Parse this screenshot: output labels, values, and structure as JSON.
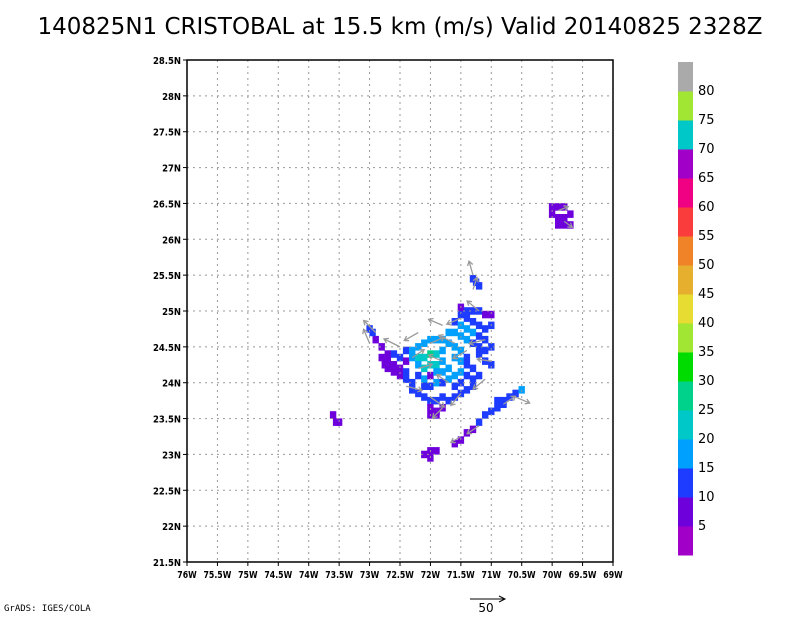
{
  "title": "140825N1 CRISTOBAL at 15.5 km (m/s) Valid 20140825 2328Z",
  "footer": "GrADS: IGES/COLA",
  "reference_vector_label": "50",
  "chart_data": {
    "type": "heatmap",
    "title": "140825N1 CRISTOBAL at 15.5 km (m/s) Valid 20140825 2328Z",
    "variable": "wind speed (m/s)",
    "xlim": [
      -76,
      -69
    ],
    "ylim": [
      21.5,
      28.5
    ],
    "x_ticks": [
      -76,
      -75.5,
      -75,
      -74.5,
      -74,
      -73.5,
      -73,
      -72.5,
      -72,
      -71.5,
      -71,
      -70.5,
      -70,
      -69.5,
      -69
    ],
    "x_tick_labels": [
      "76W",
      "75.5W",
      "75W",
      "74.5W",
      "74W",
      "73.5W",
      "73W",
      "72.5W",
      "72W",
      "71.5W",
      "71W",
      "70.5W",
      "70W",
      "69.5W",
      "69W"
    ],
    "y_ticks": [
      21.5,
      22,
      22.5,
      23,
      23.5,
      24,
      24.5,
      25,
      25.5,
      26,
      26.5,
      27,
      27.5,
      28,
      28.5
    ],
    "y_tick_labels": [
      "21.5N",
      "22N",
      "22.5N",
      "23N",
      "23.5N",
      "24N",
      "24.5N",
      "25N",
      "25.5N",
      "26N",
      "26.5N",
      "27N",
      "27.5N",
      "28N",
      "28.5N"
    ],
    "grid": true,
    "colorbar": {
      "labels": [
        "5",
        "10",
        "15",
        "20",
        "25",
        "30",
        "35",
        "40",
        "45",
        "50",
        "55",
        "60",
        "65",
        "70",
        "75",
        "80"
      ],
      "bounds": [
        0,
        5,
        10,
        15,
        20,
        25,
        30,
        35,
        40,
        45,
        50,
        55,
        60,
        65,
        70,
        75,
        80,
        85
      ],
      "colors": [
        "#a000c8",
        "#6e00dc",
        "#1e3cff",
        "#00a0ff",
        "#00c8c8",
        "#00d28c",
        "#00dc00",
        "#a0e632",
        "#e6dc32",
        "#e6af2d",
        "#f08228",
        "#fa3c3c",
        "#f00082",
        "#a000c8",
        "#00c8c8",
        "#a0e632",
        "#aaaaaa"
      ]
    },
    "cells": [
      [
        -72.9,
        24.6,
        7
      ],
      [
        -72.8,
        24.5,
        7
      ],
      [
        -72.7,
        24.4,
        8
      ],
      [
        -72.6,
        24.4,
        10
      ],
      [
        -72.5,
        24.35,
        10
      ],
      [
        -72.4,
        24.3,
        8
      ],
      [
        -72.7,
        24.3,
        6
      ],
      [
        -72.6,
        24.25,
        5
      ],
      [
        -72.5,
        24.2,
        7
      ],
      [
        -72.6,
        24.15,
        6
      ],
      [
        -72.5,
        24.1,
        8
      ],
      [
        -72.4,
        24.15,
        10
      ],
      [
        -72.4,
        24.05,
        10
      ],
      [
        -72.3,
        24.0,
        11
      ],
      [
        -72.3,
        23.9,
        10
      ],
      [
        -72.2,
        23.85,
        11
      ],
      [
        -72.1,
        23.8,
        12
      ],
      [
        -72.0,
        23.75,
        12
      ],
      [
        -71.9,
        23.75,
        11
      ],
      [
        -71.8,
        23.8,
        11
      ],
      [
        -71.7,
        23.75,
        10
      ],
      [
        -71.6,
        23.8,
        11
      ],
      [
        -71.5,
        23.85,
        10
      ],
      [
        -71.4,
        23.9,
        11
      ],
      [
        -72.0,
        23.65,
        6
      ],
      [
        -71.9,
        23.6,
        6
      ],
      [
        -72.0,
        23.55,
        7
      ],
      [
        -71.9,
        23.55,
        6
      ],
      [
        -71.8,
        23.65,
        8
      ],
      [
        -72.4,
        24.45,
        14
      ],
      [
        -72.3,
        24.45,
        17
      ],
      [
        -72.2,
        24.5,
        18
      ],
      [
        -72.1,
        24.55,
        19
      ],
      [
        -72.0,
        24.6,
        19
      ],
      [
        -71.9,
        24.6,
        18
      ],
      [
        -72.3,
        24.35,
        17
      ],
      [
        -72.2,
        24.35,
        21
      ],
      [
        -72.1,
        24.35,
        24
      ],
      [
        -72.0,
        24.4,
        26
      ],
      [
        -71.9,
        24.4,
        24
      ],
      [
        -71.8,
        24.45,
        19
      ],
      [
        -72.2,
        24.25,
        18
      ],
      [
        -72.1,
        24.2,
        23
      ],
      [
        -72.0,
        24.25,
        24
      ],
      [
        -71.9,
        24.25,
        20
      ],
      [
        -71.8,
        24.3,
        18
      ],
      [
        -72.2,
        24.1,
        14
      ],
      [
        -72.1,
        24.05,
        17
      ],
      [
        -72.0,
        24.1,
        9
      ],
      [
        -71.9,
        24.15,
        16
      ],
      [
        -71.8,
        24.15,
        17
      ],
      [
        -71.7,
        24.2,
        16
      ],
      [
        -72.1,
        23.95,
        12
      ],
      [
        -72.0,
        23.95,
        13
      ],
      [
        -71.9,
        24.0,
        15
      ],
      [
        -71.8,
        24.0,
        14
      ],
      [
        -71.7,
        24.05,
        16
      ],
      [
        -71.6,
        24.1,
        15
      ],
      [
        -71.8,
        24.6,
        17
      ],
      [
        -71.7,
        24.55,
        17
      ],
      [
        -71.6,
        24.5,
        16
      ],
      [
        -71.5,
        24.45,
        15
      ],
      [
        -71.6,
        24.35,
        16
      ],
      [
        -71.5,
        24.3,
        15
      ],
      [
        -71.4,
        24.35,
        13
      ],
      [
        -71.4,
        24.25,
        12
      ],
      [
        -71.3,
        24.2,
        12
      ],
      [
        -71.5,
        24.15,
        15
      ],
      [
        -71.4,
        24.1,
        13
      ],
      [
        -71.3,
        24.05,
        12
      ],
      [
        -71.2,
        24.1,
        11
      ],
      [
        -71.6,
        23.95,
        13
      ],
      [
        -71.5,
        24.0,
        13
      ],
      [
        -71.3,
        23.95,
        11
      ],
      [
        -71.7,
        24.7,
        16
      ],
      [
        -71.6,
        24.7,
        15
      ],
      [
        -71.5,
        24.65,
        15
      ],
      [
        -71.4,
        24.6,
        15
      ],
      [
        -71.3,
        24.55,
        14
      ],
      [
        -71.2,
        24.5,
        12
      ],
      [
        -71.6,
        24.85,
        13
      ],
      [
        -71.5,
        24.8,
        15
      ],
      [
        -71.4,
        24.75,
        15
      ],
      [
        -71.3,
        24.7,
        15
      ],
      [
        -71.2,
        24.65,
        13
      ],
      [
        -71.1,
        24.6,
        11
      ],
      [
        -71.5,
        24.95,
        11
      ],
      [
        -71.4,
        24.9,
        13
      ],
      [
        -71.3,
        24.85,
        14
      ],
      [
        -71.2,
        24.8,
        13
      ],
      [
        -71.1,
        24.75,
        11
      ],
      [
        -71.0,
        24.8,
        10
      ],
      [
        -71.5,
        25.05,
        9
      ],
      [
        -71.4,
        25.0,
        10
      ],
      [
        -71.3,
        25.0,
        11
      ],
      [
        -71.2,
        25.0,
        10
      ],
      [
        -71.1,
        24.95,
        9
      ],
      [
        -71.0,
        24.95,
        7
      ],
      [
        -71.2,
        24.4,
        11
      ],
      [
        -71.1,
        24.45,
        11
      ],
      [
        -71.0,
        24.5,
        10
      ],
      [
        -71.1,
        24.3,
        10
      ],
      [
        -71.0,
        24.25,
        10
      ],
      [
        -71.3,
        25.45,
        10
      ],
      [
        -71.25,
        25.4,
        10
      ],
      [
        -71.2,
        25.35,
        10
      ],
      [
        -72.8,
        24.35,
        6
      ],
      [
        -72.75,
        24.25,
        7
      ],
      [
        -72.7,
        24.2,
        6
      ],
      [
        -73.0,
        24.75,
        12
      ],
      [
        -72.95,
        24.7,
        13
      ],
      [
        -70.9,
        23.75,
        11
      ],
      [
        -70.8,
        23.75,
        11
      ],
      [
        -70.7,
        23.8,
        11
      ],
      [
        -70.6,
        23.85,
        12
      ],
      [
        -70.5,
        23.9,
        15
      ],
      [
        -70.9,
        23.65,
        10
      ],
      [
        -70.8,
        23.7,
        11
      ],
      [
        -71.0,
        23.6,
        10
      ],
      [
        -71.1,
        23.55,
        11
      ],
      [
        -71.2,
        23.45,
        12
      ],
      [
        -71.3,
        23.35,
        8
      ],
      [
        -71.4,
        23.3,
        7
      ],
      [
        -71.5,
        23.2,
        6
      ],
      [
        -71.6,
        23.15,
        7
      ],
      [
        -72.0,
        23.05,
        6
      ],
      [
        -71.9,
        23.05,
        6
      ],
      [
        -72.0,
        22.95,
        7
      ],
      [
        -72.1,
        23.0,
        6
      ],
      [
        -73.6,
        23.55,
        6
      ],
      [
        -73.55,
        23.45,
        7
      ],
      [
        -73.5,
        23.45,
        6
      ],
      [
        -70.0,
        26.45,
        6
      ],
      [
        -69.9,
        26.45,
        7
      ],
      [
        -69.8,
        26.45,
        6
      ],
      [
        -70.0,
        26.35,
        6
      ],
      [
        -69.9,
        26.3,
        6
      ],
      [
        -69.8,
        26.3,
        5
      ],
      [
        -69.9,
        26.2,
        6
      ],
      [
        -69.8,
        26.2,
        7
      ],
      [
        -69.7,
        26.2,
        6
      ],
      [
        -69.7,
        26.35,
        6
      ]
    ],
    "vectors": [
      [
        -72.9,
        24.7,
        -12,
        12
      ],
      [
        -72.5,
        24.5,
        -16,
        8
      ],
      [
        -72.2,
        24.7,
        -14,
        -8
      ],
      [
        -71.8,
        24.8,
        -14,
        6
      ],
      [
        -71.5,
        24.9,
        -14,
        -6
      ],
      [
        -71.2,
        25.0,
        -12,
        10
      ],
      [
        -71.1,
        24.6,
        -16,
        -4
      ],
      [
        -71.0,
        24.3,
        -14,
        2
      ],
      [
        -71.1,
        24.05,
        -12,
        -10
      ],
      [
        -71.5,
        23.85,
        -10,
        -12
      ],
      [
        -72.0,
        23.8,
        14,
        -10
      ],
      [
        -72.4,
        23.95,
        16,
        -4
      ],
      [
        -72.2,
        24.2,
        14,
        4
      ],
      [
        -71.8,
        24.3,
        -14,
        6
      ],
      [
        -71.7,
        24.0,
        -12,
        8
      ],
      [
        -72.3,
        24.35,
        12,
        8
      ],
      [
        -71.3,
        25.5,
        -4,
        14
      ],
      [
        -71.3,
        25.3,
        4,
        12
      ],
      [
        -70.6,
        23.8,
        14,
        -6
      ],
      [
        -70.8,
        23.7,
        12,
        8
      ],
      [
        -71.2,
        23.4,
        -12,
        -8
      ],
      [
        -71.5,
        23.25,
        -10,
        -6
      ],
      [
        -73.0,
        24.55,
        -6,
        14
      ],
      [
        -69.9,
        26.4,
        10,
        4
      ],
      [
        -69.8,
        26.25,
        8,
        -6
      ],
      [
        -72.0,
        24.55,
        14,
        6
      ],
      [
        -71.6,
        24.55,
        -16,
        8
      ],
      [
        -71.4,
        24.45,
        -14,
        -8
      ],
      [
        -71.8,
        23.65,
        -10,
        -10
      ]
    ],
    "reference_vector": {
      "label": "50",
      "length": 50
    }
  }
}
